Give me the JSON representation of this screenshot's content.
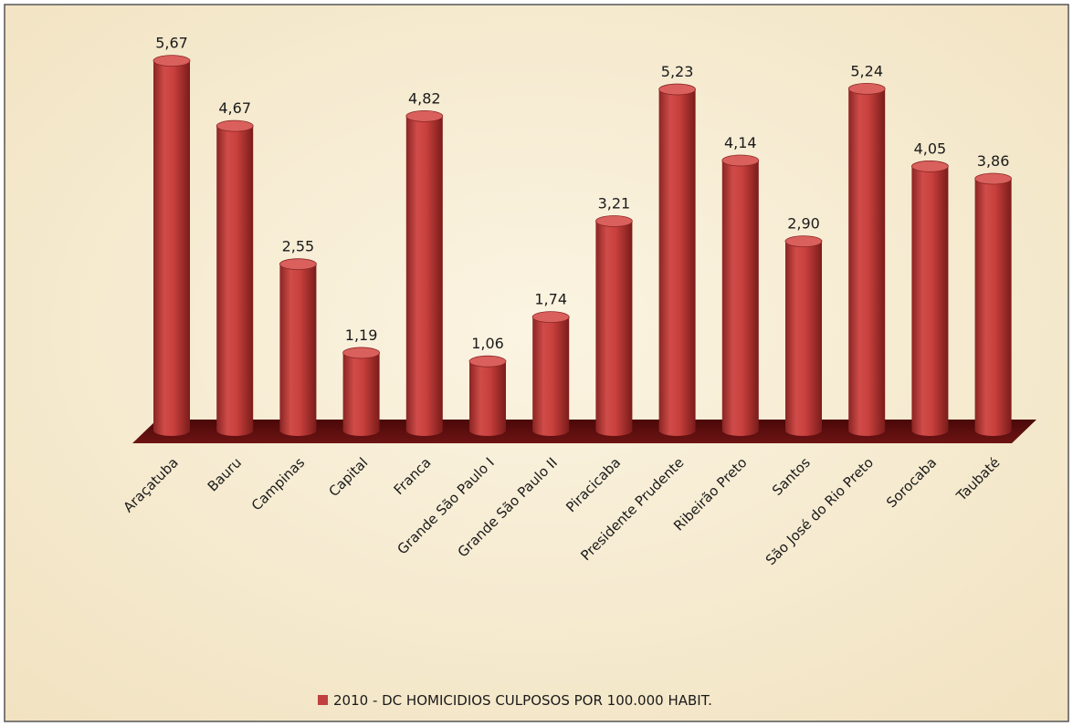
{
  "chart_data": {
    "type": "bar",
    "style": "3d-cylinder",
    "categories": [
      "Araçatuba",
      "Bauru",
      "Campinas",
      "Capital",
      "Franca",
      "Grande São Paulo I",
      "Grande São Paulo II",
      "Piracicaba",
      "Presidente Prudente",
      "Ribeirão Preto",
      "Santos",
      "São José do Rio Preto",
      "Sorocaba",
      "Taubaté"
    ],
    "series": [
      {
        "name": "2010 - DC HOMICIDIOS CULPOSOS POR 100.000 HABIT.",
        "values": [
          5.67,
          4.67,
          2.55,
          1.19,
          4.82,
          1.06,
          1.74,
          3.21,
          5.23,
          4.14,
          2.9,
          5.24,
          4.05,
          3.86
        ],
        "value_labels": [
          "5,67",
          "4,67",
          "2,55",
          "1,19",
          "4,82",
          "1,06",
          "1,74",
          "3,21",
          "5,23",
          "4,14",
          "2,90",
          "5,24",
          "4,05",
          "3,86"
        ]
      }
    ],
    "ylim": [
      0,
      6
    ],
    "grid": false,
    "legend_position": "bottom",
    "colors": {
      "bar": "#c0403f",
      "bar_dark": "#7a1f1e",
      "bar_light": "#e07a78",
      "floor": "#5a0c0c",
      "background": "#f6ecd2",
      "frame": "#555555",
      "text": "#1a1a1a"
    }
  }
}
